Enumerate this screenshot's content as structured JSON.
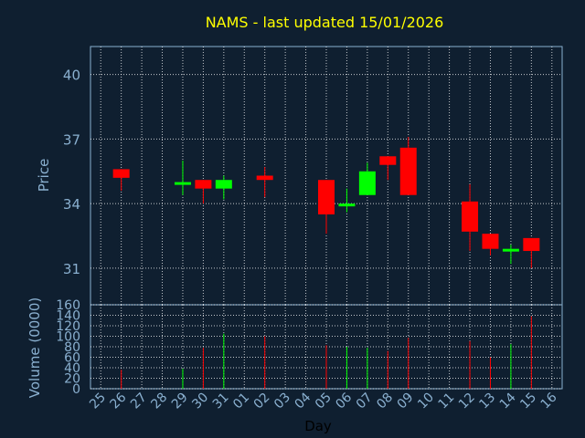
{
  "chart_data": [
    {
      "type": "candlestick",
      "title": "NAMS - last updated 15/01/2026",
      "ylabel": "Price",
      "ylim": [
        29.3,
        41.3
      ],
      "yticks": [
        31,
        34,
        37,
        40
      ],
      "grid": true,
      "x": [
        "25",
        "26",
        "27",
        "28",
        "29",
        "30",
        "31",
        "01",
        "02",
        "03",
        "04",
        "05",
        "06",
        "07",
        "08",
        "09",
        "10",
        "11",
        "12",
        "13",
        "14",
        "15",
        "16"
      ],
      "candles": [
        {
          "day": "26",
          "open": 35.6,
          "high": 35.6,
          "low": 34.6,
          "close": 35.2
        },
        {
          "day": "29",
          "open": 34.9,
          "high": 36.0,
          "low": 34.4,
          "close": 35.0
        },
        {
          "day": "30",
          "open": 35.1,
          "high": 35.1,
          "low": 34.0,
          "close": 34.7
        },
        {
          "day": "31",
          "open": 34.7,
          "high": 35.3,
          "low": 34.2,
          "close": 35.1
        },
        {
          "day": "02",
          "open": 35.3,
          "high": 35.7,
          "low": 34.3,
          "close": 35.1
        },
        {
          "day": "05",
          "open": 35.1,
          "high": 35.1,
          "low": 32.6,
          "close": 33.5
        },
        {
          "day": "06",
          "open": 34.0,
          "high": 34.7,
          "low": 33.6,
          "close": 34.0
        },
        {
          "day": "07",
          "open": 34.4,
          "high": 35.9,
          "low": 34.4,
          "close": 35.5
        },
        {
          "day": "08",
          "open": 36.2,
          "high": 36.2,
          "low": 35.1,
          "close": 35.8
        },
        {
          "day": "09",
          "open": 36.6,
          "high": 37.1,
          "low": 34.4,
          "close": 34.4
        },
        {
          "day": "12",
          "open": 34.1,
          "high": 34.9,
          "low": 31.8,
          "close": 32.7
        },
        {
          "day": "13",
          "open": 32.6,
          "high": 32.6,
          "low": 31.6,
          "close": 31.9
        },
        {
          "day": "14",
          "open": 31.9,
          "high": 32.1,
          "low": 31.2,
          "close": 31.9
        },
        {
          "day": "15",
          "open": 32.4,
          "high": 32.4,
          "low": 31.0,
          "close": 31.8
        }
      ],
      "colors": {
        "up": "#00ff00",
        "down": "#ff0000",
        "grid": "#ffffff",
        "axis": "#8ab0d0",
        "title": "#ffff00"
      }
    },
    {
      "type": "bar",
      "ylabel": "Volume (0000)",
      "xlabel": "Day",
      "ylim": [
        0,
        160
      ],
      "yticks": [
        0,
        20,
        40,
        60,
        80,
        100,
        120,
        140,
        160
      ],
      "categories": [
        "26",
        "29",
        "30",
        "31",
        "02",
        "05",
        "06",
        "07",
        "08",
        "09",
        "12",
        "13",
        "14",
        "15"
      ],
      "values": [
        36,
        38,
        78,
        105,
        100,
        83,
        80,
        78,
        72,
        97,
        91,
        60,
        85,
        138
      ],
      "bar_colors": [
        "#ff0000",
        "#00ff00",
        "#ff0000",
        "#00ff00",
        "#ff0000",
        "#ff0000",
        "#00ff00",
        "#00ff00",
        "#ff0000",
        "#ff0000",
        "#ff0000",
        "#ff0000",
        "#00ff00",
        "#ff0000"
      ]
    }
  ]
}
